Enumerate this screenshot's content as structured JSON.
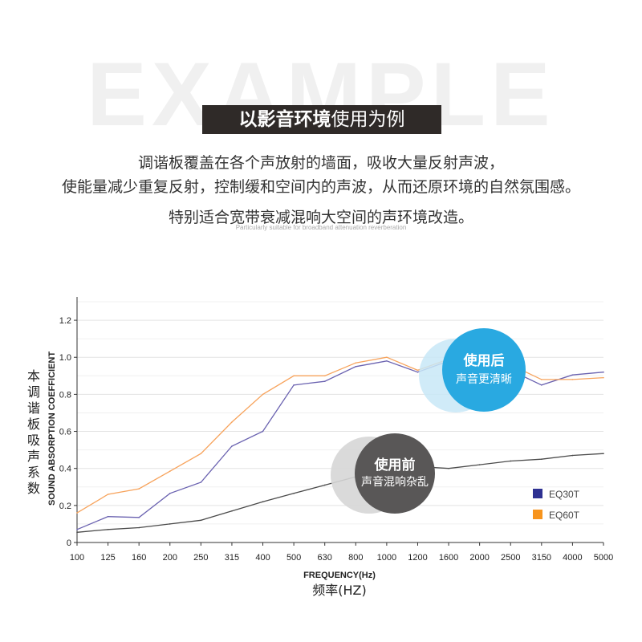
{
  "header": {
    "watermark": "EXAMPLE",
    "title_bold": "以影音环境",
    "title_rest": "使用为例",
    "lines": [
      "调谐板覆盖在各个声放射的墙面，吸收大量反射声波，",
      "使能量减少重复反射，控制缓和空间内的声波，从而还原环境的自然氛围感。",
      "特别适合宽带衰减混响大空间的声环境改造。"
    ],
    "caption": "Particularly suitable for broadband attenuation reverberation"
  },
  "bubbles": {
    "after": {
      "title": "使用后",
      "subtitle": "声音更清晰",
      "color": "#29a9e1"
    },
    "before": {
      "title": "使用前",
      "subtitle": "声音混响杂乱",
      "color": "#595757"
    }
  },
  "chart_data": {
    "type": "line",
    "categories": [
      "100",
      "125",
      "160",
      "200",
      "250",
      "315",
      "400",
      "500",
      "630",
      "800",
      "1000",
      "1200",
      "1600",
      "2000",
      "2500",
      "3150",
      "4000",
      "5000"
    ],
    "xlabel": "FREQUENCY(Hz)",
    "xlabel_cn": "频率(HZ)",
    "ylabel": "SOUND ABSORPTION COEFFICIENT",
    "ylabel_cn": "本调谐板吸声系数",
    "ylim": [
      0,
      1.3
    ],
    "yticks": [
      "0",
      "0.2",
      "0.4",
      "0.6",
      "0.8",
      "1.0",
      "1.2"
    ],
    "grid": true,
    "legend_position": "bottom-right",
    "series": [
      {
        "name": "EQ30T",
        "color": "#6a62b0",
        "legend_color": "#2e3192",
        "values": [
          0.07,
          0.14,
          0.135,
          0.265,
          0.325,
          0.52,
          0.6,
          0.85,
          0.87,
          0.95,
          0.98,
          0.92,
          0.98,
          0.97,
          0.93,
          0.85,
          0.905,
          0.92
        ]
      },
      {
        "name": "EQ60T",
        "color": "#f7a35c",
        "legend_color": "#f7941d",
        "values": [
          0.16,
          0.26,
          0.29,
          0.385,
          0.48,
          0.65,
          0.8,
          0.9,
          0.9,
          0.97,
          1.0,
          0.93,
          0.99,
          0.98,
          0.96,
          0.88,
          0.88,
          0.89
        ]
      },
      {
        "name": "",
        "color": "#4a4a4a",
        "values": [
          0.055,
          0.07,
          0.08,
          0.1,
          0.12,
          0.17,
          0.22,
          0.265,
          0.31,
          0.355,
          0.38,
          0.41,
          0.4,
          0.42,
          0.44,
          0.45,
          0.47,
          0.48
        ]
      }
    ]
  }
}
